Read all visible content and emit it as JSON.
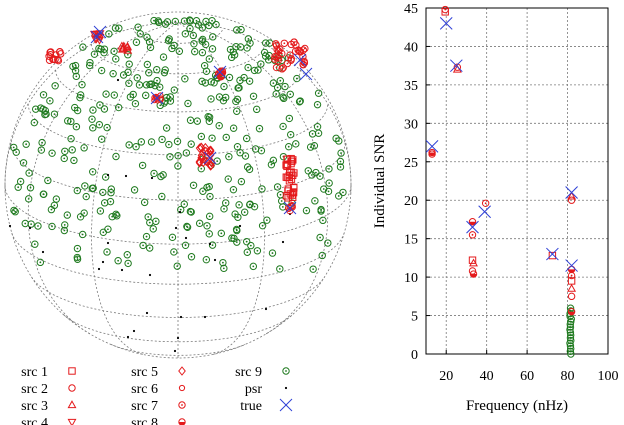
{
  "colors": {
    "red": "#e41a1c",
    "green": "#1f7a1f",
    "blue": "#2e3fd6",
    "black": "#000000"
  },
  "chart_data": [
    {
      "type": "scatter",
      "projection": "hammer-aitoff-sky",
      "grid": true,
      "legend_placement": "bottom",
      "legend": [
        {
          "key": "src1",
          "label": "src 1",
          "marker": "square",
          "color": "#e41a1c"
        },
        {
          "key": "src2",
          "label": "src 2",
          "marker": "circle",
          "color": "#e41a1c"
        },
        {
          "key": "src3",
          "label": "src 3",
          "marker": "triangle-up",
          "color": "#e41a1c"
        },
        {
          "key": "src4",
          "label": "src 4",
          "marker": "triangle-down",
          "color": "#e41a1c"
        },
        {
          "key": "src5",
          "label": "src 5",
          "marker": "diamond",
          "color": "#e41a1c"
        },
        {
          "key": "src6",
          "label": "src 6",
          "marker": "small-circle",
          "color": "#e41a1c"
        },
        {
          "key": "src7",
          "label": "src 7",
          "marker": "circle-dot",
          "color": "#e41a1c"
        },
        {
          "key": "src8",
          "label": "src 8",
          "marker": "circle-filled-half",
          "color": "#e41a1c"
        },
        {
          "key": "src9",
          "label": "src 9",
          "marker": "circle-dot",
          "color": "#1f7a1f"
        },
        {
          "key": "psr",
          "label": "psr",
          "marker": "dot",
          "color": "#000000"
        },
        {
          "key": "true",
          "label": "true",
          "marker": "x",
          "color": "#2e3fd6"
        }
      ],
      "clusters": [
        {
          "series": "src2",
          "lon": -150,
          "lat": 52,
          "count": 14
        },
        {
          "series": "src3",
          "lon": -95,
          "lat": 62,
          "count": 10
        },
        {
          "series": "src4",
          "lon": -70,
          "lat": 42,
          "count": 16
        },
        {
          "series": "src6",
          "lon": 5,
          "lat": 58,
          "count": 8
        },
        {
          "series": "src7",
          "lon": 65,
          "lat": 68,
          "count": 30
        },
        {
          "series": "src8",
          "lon": 70,
          "lat": 28,
          "count": 8
        },
        {
          "series": "src5",
          "lon": 23,
          "lat": 20,
          "count": 26
        },
        {
          "series": "src1",
          "lon": 125,
          "lat": 15,
          "count": 30
        },
        {
          "series": "src2",
          "lon": 110,
          "lat": -18,
          "count": 6
        }
      ],
      "true_points": [
        {
          "lon": -60,
          "lat": 72
        },
        {
          "lon": -40,
          "lat": 60
        },
        {
          "lon": -70,
          "lat": 42
        },
        {
          "lon": 5,
          "lat": 58
        },
        {
          "lon": 22,
          "lat": 20
        },
        {
          "lon": 70,
          "lat": 28
        },
        {
          "lon": 108,
          "lat": -18
        }
      ]
    },
    {
      "type": "scatter",
      "xlabel": "Frequency (nHz)",
      "ylabel": "Individual SNR",
      "xlim": [
        10,
        100
      ],
      "ylim": [
        0,
        45
      ],
      "xticks": [
        20,
        40,
        60,
        80,
        100
      ],
      "yticks": [
        0,
        5,
        10,
        15,
        20,
        25,
        30,
        35,
        40,
        45
      ],
      "grid": true,
      "true_points": [
        {
          "x": 13,
          "y": 27
        },
        {
          "x": 20,
          "y": 43
        },
        {
          "x": 25,
          "y": 37.5
        },
        {
          "x": 33,
          "y": 16.5
        },
        {
          "x": 39,
          "y": 18.5
        },
        {
          "x": 72.5,
          "y": 13
        },
        {
          "x": 82,
          "y": 21
        },
        {
          "x": 82,
          "y": 11.5
        }
      ],
      "estimates": [
        {
          "x": 13,
          "y": 26
        },
        {
          "x": 13,
          "y": 26.2
        },
        {
          "x": 19.5,
          "y": 44.8
        },
        {
          "x": 19.5,
          "y": 44.5
        },
        {
          "x": 25.5,
          "y": 37
        },
        {
          "x": 25.5,
          "y": 37.3
        },
        {
          "x": 33,
          "y": 17.2
        },
        {
          "x": 33,
          "y": 15.5
        },
        {
          "x": 33,
          "y": 12.2
        },
        {
          "x": 33.5,
          "y": 11.8
        },
        {
          "x": 33,
          "y": 10.8
        },
        {
          "x": 33.5,
          "y": 10.4
        },
        {
          "x": 39.5,
          "y": 19.6
        },
        {
          "x": 72.5,
          "y": 12.8
        },
        {
          "x": 82,
          "y": 20.5
        },
        {
          "x": 82,
          "y": 20
        },
        {
          "x": 82,
          "y": 11
        },
        {
          "x": 82,
          "y": 10.2
        },
        {
          "x": 82,
          "y": 9.5
        },
        {
          "x": 82,
          "y": 8.5
        },
        {
          "x": 82,
          "y": 7.5
        },
        {
          "x": 82,
          "y": 5.5
        }
      ],
      "green_column": {
        "x": 81.5,
        "y_range": [
          0,
          6
        ]
      }
    }
  ]
}
